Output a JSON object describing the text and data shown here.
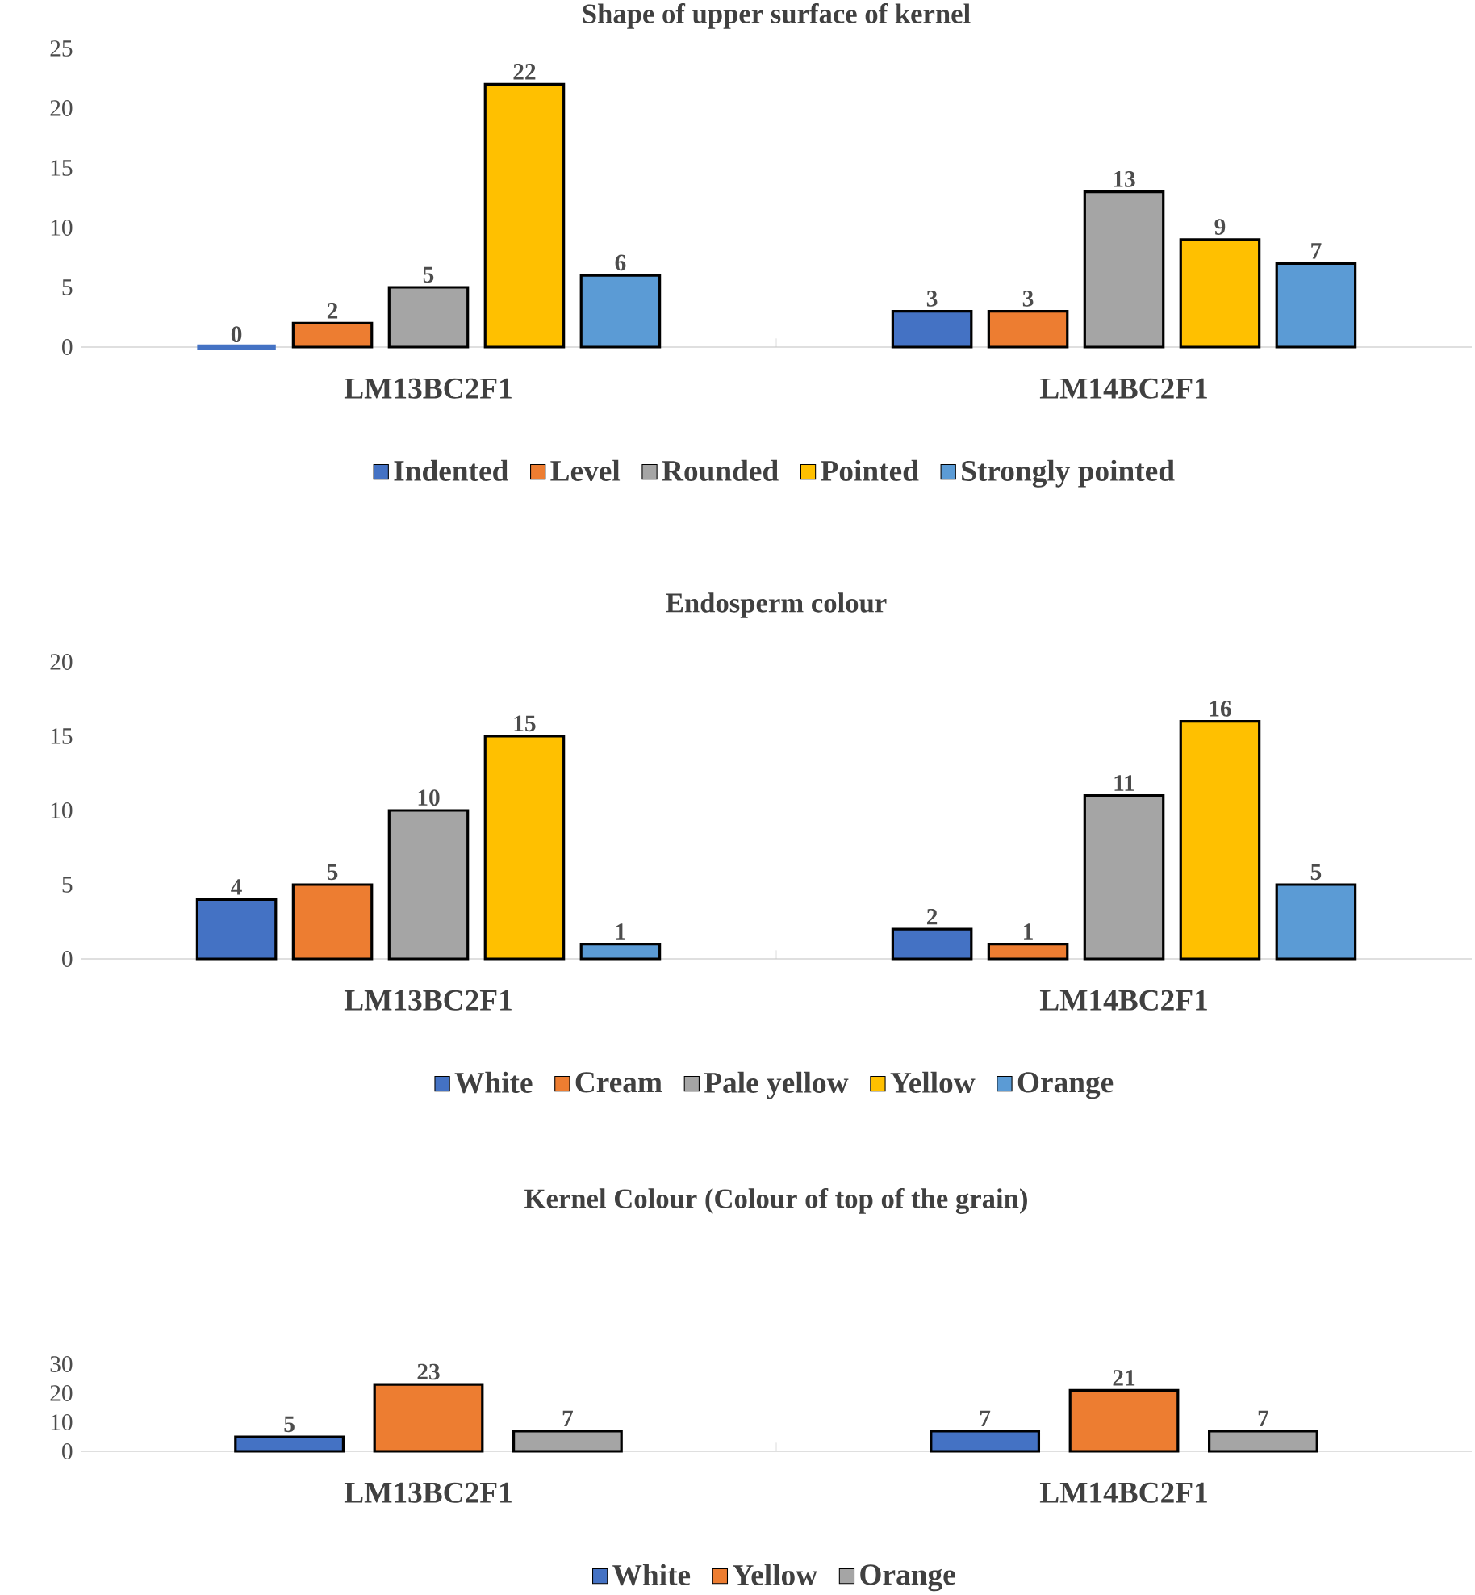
{
  "chart_data": [
    {
      "type": "bar",
      "title": "Shape of upper surface of kernel",
      "categories": [
        "LM13BC2F1",
        "LM14BC2F1"
      ],
      "ylim": [
        0,
        25
      ],
      "yticks": [
        0,
        5,
        10,
        15,
        20,
        25
      ],
      "data_labels": true,
      "legend": "bottom",
      "series": [
        {
          "name": "Indented",
          "color": "#4472c4",
          "values": [
            0,
            3
          ]
        },
        {
          "name": "Level",
          "color": "#ed7d31",
          "values": [
            2,
            3
          ]
        },
        {
          "name": "Rounded",
          "color": "#a5a5a5",
          "values": [
            5,
            13
          ]
        },
        {
          "name": "Pointed",
          "color": "#ffc000",
          "values": [
            22,
            9
          ]
        },
        {
          "name": "Strongly pointed",
          "color": "#5b9bd5",
          "values": [
            6,
            7
          ]
        }
      ]
    },
    {
      "type": "bar",
      "title": "Endosperm colour",
      "categories": [
        "LM13BC2F1",
        "LM14BC2F1"
      ],
      "ylim": [
        0,
        20
      ],
      "yticks": [
        0,
        5,
        10,
        15,
        20
      ],
      "data_labels": true,
      "legend": "bottom",
      "series": [
        {
          "name": "White",
          "color": "#4472c4",
          "values": [
            4,
            2
          ]
        },
        {
          "name": "Cream",
          "color": "#ed7d31",
          "values": [
            5,
            1
          ]
        },
        {
          "name": "Pale yellow",
          "color": "#a5a5a5",
          "values": [
            10,
            11
          ]
        },
        {
          "name": "Yellow",
          "color": "#ffc000",
          "values": [
            15,
            16
          ]
        },
        {
          "name": "Orange",
          "color": "#5b9bd5",
          "values": [
            1,
            5
          ]
        }
      ]
    },
    {
      "type": "bar",
      "title": "Kernel Colour (Colour of top of the grain)",
      "categories": [
        "LM13BC2F1",
        "LM14BC2F1"
      ],
      "ylim": [
        0,
        30
      ],
      "yticks": [
        0,
        10,
        20,
        30
      ],
      "data_labels": true,
      "legend": "bottom",
      "series": [
        {
          "name": "White",
          "color": "#4472c4",
          "values": [
            5,
            7
          ]
        },
        {
          "name": "Yellow",
          "color": "#ed7d31",
          "values": [
            23,
            21
          ]
        },
        {
          "name": "Orange",
          "color": "#a5a5a5",
          "values": [
            7,
            7
          ]
        }
      ]
    }
  ]
}
